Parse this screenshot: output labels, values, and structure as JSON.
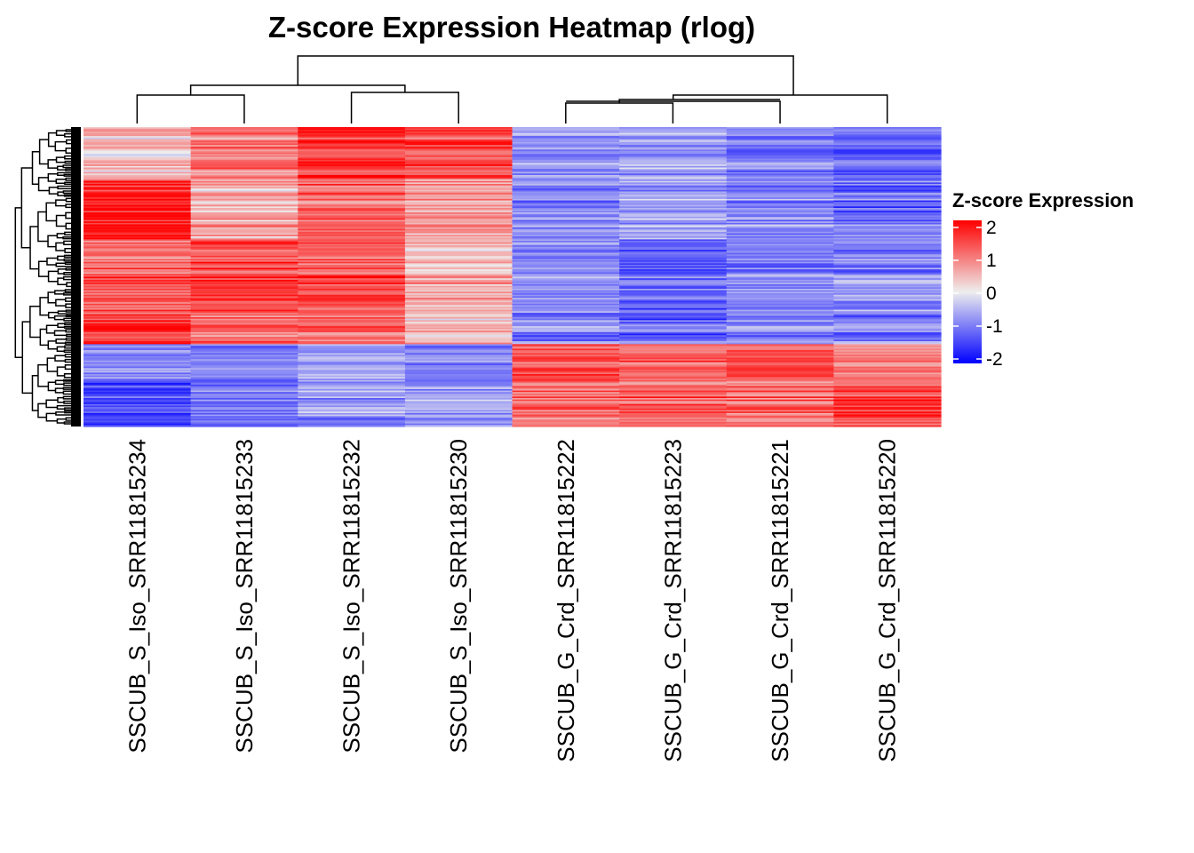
{
  "chart_data": {
    "type": "heatmap",
    "title": "Z-score Expression Heatmap (rlog)",
    "columns": [
      "SSCUB_S_Iso_SRR11815234",
      "SSCUB_S_Iso_SRR11815233",
      "SSCUB_S_Iso_SRR11815232",
      "SSCUB_S_Iso_SRR11815230",
      "SSCUB_G_Crd_SRR11815222",
      "SSCUB_G_Crd_SRR11815223",
      "SSCUB_G_Crd_SRR11815221",
      "SSCUB_G_Crd_SRR11815220"
    ],
    "row_count": 200,
    "row_clusters": [
      {
        "rows": 35,
        "means": [
          0.3,
          0.9,
          1.4,
          1.3,
          -0.8,
          -0.7,
          -1.0,
          -1.3
        ]
      },
      {
        "rows": 40,
        "means": [
          1.8,
          0.5,
          1.1,
          0.6,
          -0.9,
          -0.7,
          -0.9,
          -1.1
        ]
      },
      {
        "rows": 50,
        "means": [
          1.2,
          1.5,
          1.3,
          0.5,
          -0.8,
          -1.1,
          -0.9,
          -0.8
        ]
      },
      {
        "rows": 20,
        "means": [
          1.7,
          1.2,
          1.2,
          0.4,
          -0.9,
          -1.1,
          -0.8,
          -0.9
        ]
      },
      {
        "rows": 25,
        "means": [
          -0.8,
          -0.9,
          -0.6,
          -0.9,
          1.4,
          1.2,
          1.3,
          0.9
        ]
      },
      {
        "rows": 30,
        "means": [
          -1.3,
          -0.9,
          -0.7,
          -0.6,
          1.2,
          1.2,
          1.1,
          1.5
        ]
      }
    ],
    "color_scale": {
      "domain": [
        -2,
        0,
        2
      ],
      "colors": [
        "#0000ff",
        "#eeeeee",
        "#ff0000"
      ]
    },
    "legend": {
      "title": "Z-score Expression",
      "ticks": [
        "2",
        "1",
        "0",
        "-1",
        "-2"
      ],
      "tick_values": [
        2,
        1,
        0,
        -1,
        -2
      ],
      "placement": "right"
    },
    "column_dendrogram": {
      "merge_order": [
        [
          4,
          5
        ],
        [
          6,
          7
        ],
        [
          0,
          1
        ],
        [
          2,
          3
        ]
      ],
      "top_split": "S_Iso vs G_Crd"
    }
  }
}
